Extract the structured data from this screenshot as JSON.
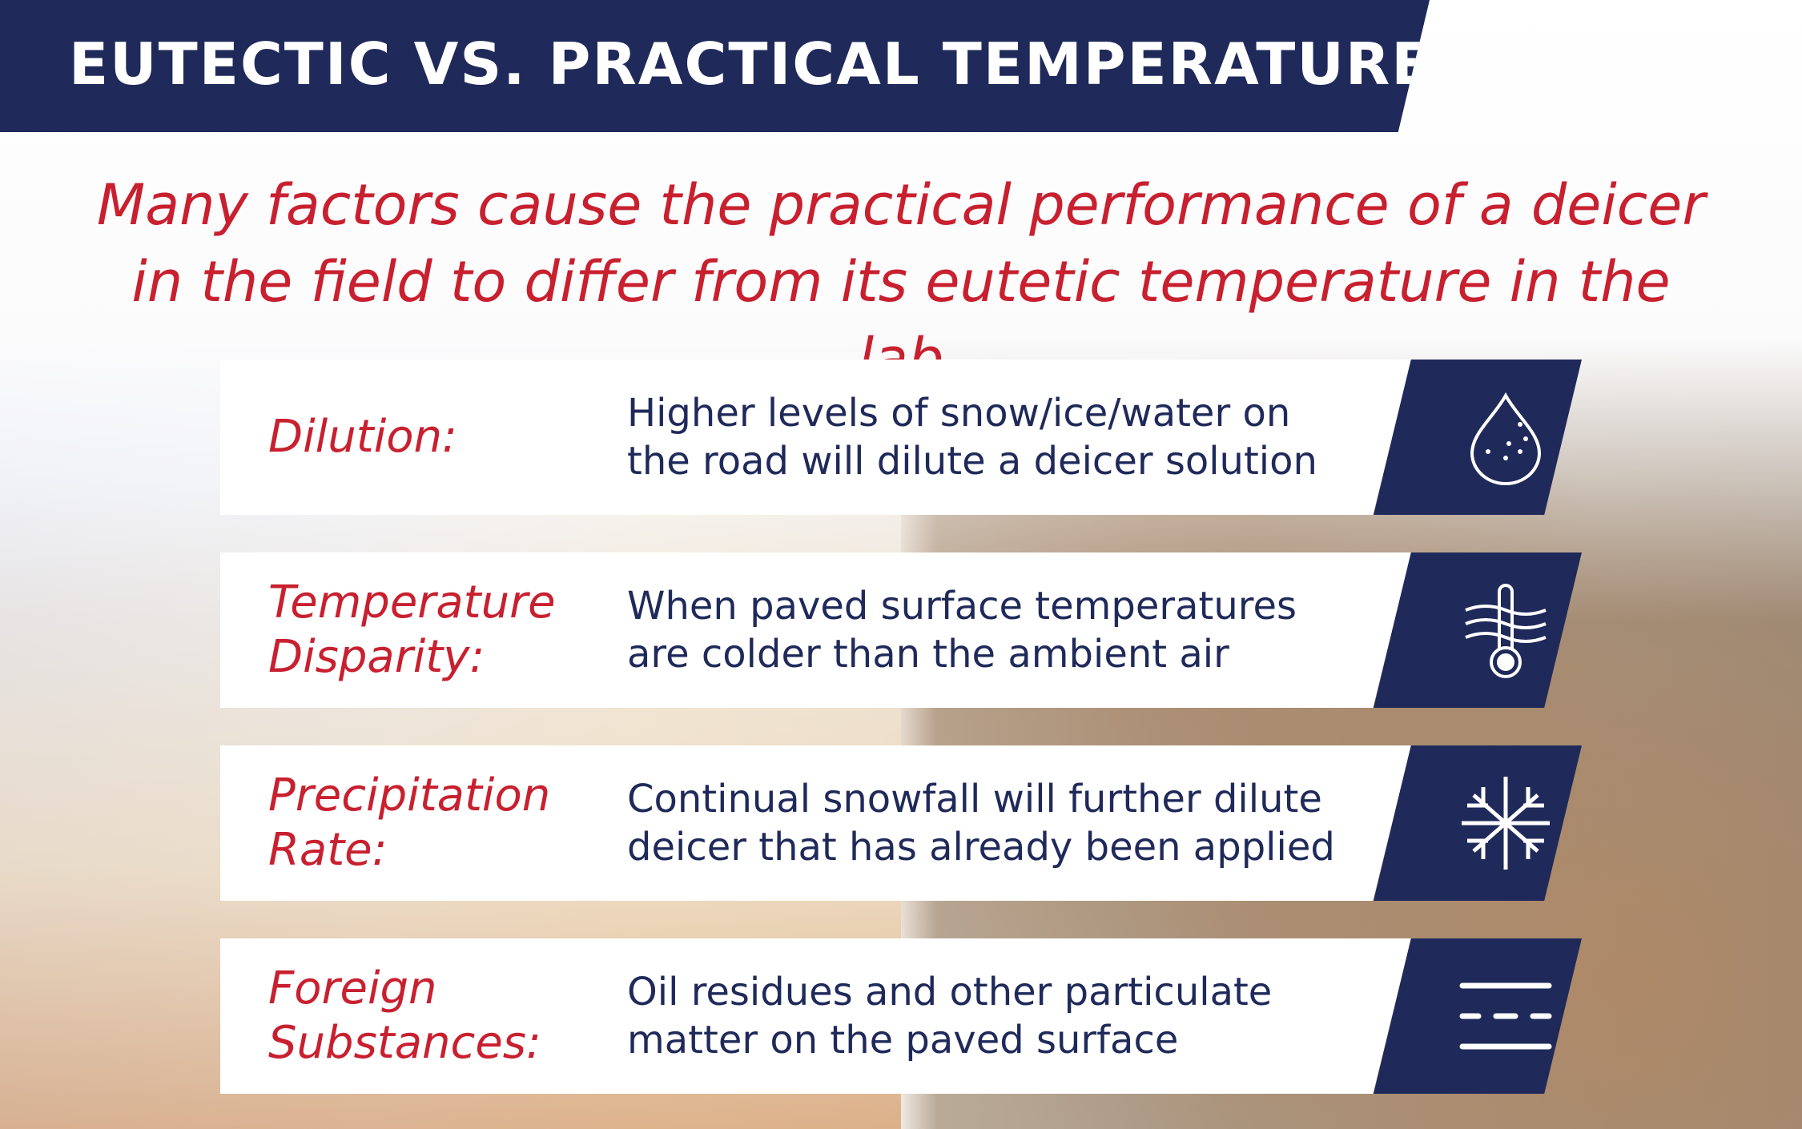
{
  "title": "EUTECTIC VS. PRACTICAL TEMPERATURES",
  "subtitle": "Many factors cause the practical performance of a deicer in the field to differ from its eutetic temperature in the lab",
  "colors": {
    "navy": "#1f2a5a",
    "red": "#c8202f"
  },
  "factors": [
    {
      "label": "Dilution:",
      "description": "Higher levels of snow/ice/water on the road will dilute a deicer solution",
      "icon": "water-drop-icon"
    },
    {
      "label": "Temperature Disparity:",
      "description": "When paved surface temperatures are colder than the ambient air",
      "icon": "thermometer-waves-icon"
    },
    {
      "label": "Precipitation Rate:",
      "description": "Continual snowfall will further dilute deicer that has already been applied",
      "icon": "snowflake-icon"
    },
    {
      "label": "Foreign Substances:",
      "description": "Oil residues and other particulate matter on the paved surface",
      "icon": "dashed-lines-icon"
    }
  ]
}
